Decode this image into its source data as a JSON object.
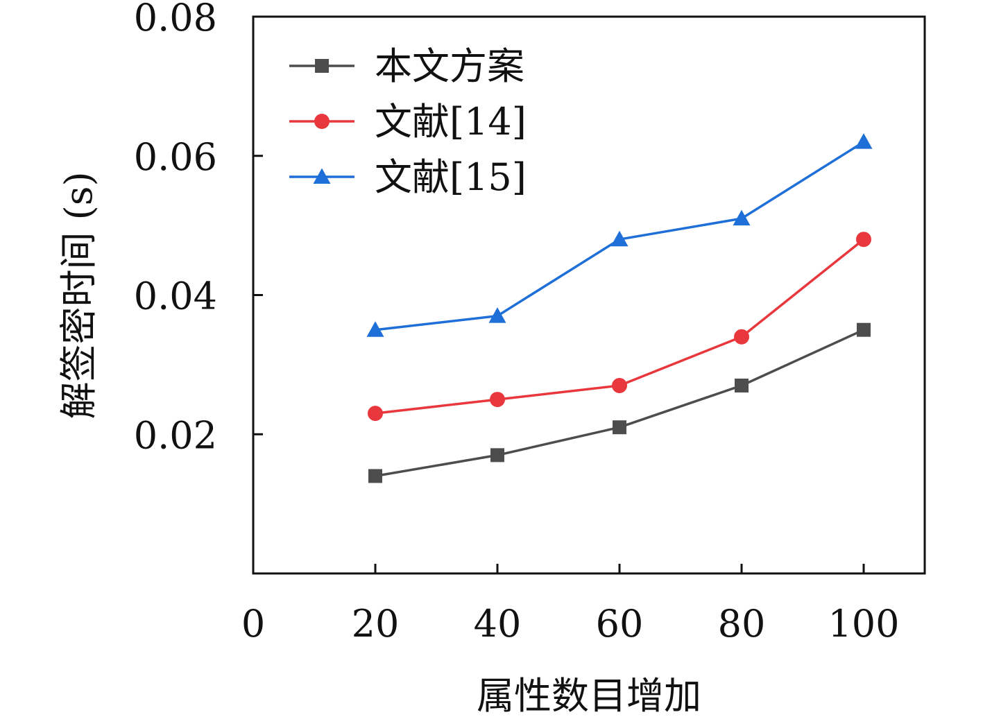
{
  "chart_data": {
    "type": "line",
    "xlabel": "属性数目增加",
    "ylabel": "解签密时间 (s)",
    "xlim": [
      0,
      110
    ],
    "ylim": [
      0,
      0.08
    ],
    "x_ticks": [
      "0",
      "20",
      "40",
      "60",
      "80",
      "100"
    ],
    "y_ticks": [
      "0.02",
      "0.04",
      "0.06",
      "0.08"
    ],
    "x": [
      20,
      40,
      60,
      80,
      100
    ],
    "legend_position": "top-left",
    "grid": false,
    "series": [
      {
        "name": "本文方案",
        "marker": "square",
        "color": "#4d4d4d",
        "values": [
          0.014,
          0.017,
          0.021,
          0.027,
          0.035
        ]
      },
      {
        "name": "文献[14]",
        "marker": "circle",
        "color": "#e8383d",
        "values": [
          0.023,
          0.025,
          0.027,
          0.034,
          0.048
        ]
      },
      {
        "name": "文献[15]",
        "marker": "triangle",
        "color": "#1f6fd8",
        "values": [
          0.035,
          0.037,
          0.048,
          0.051,
          0.062
        ]
      }
    ]
  }
}
